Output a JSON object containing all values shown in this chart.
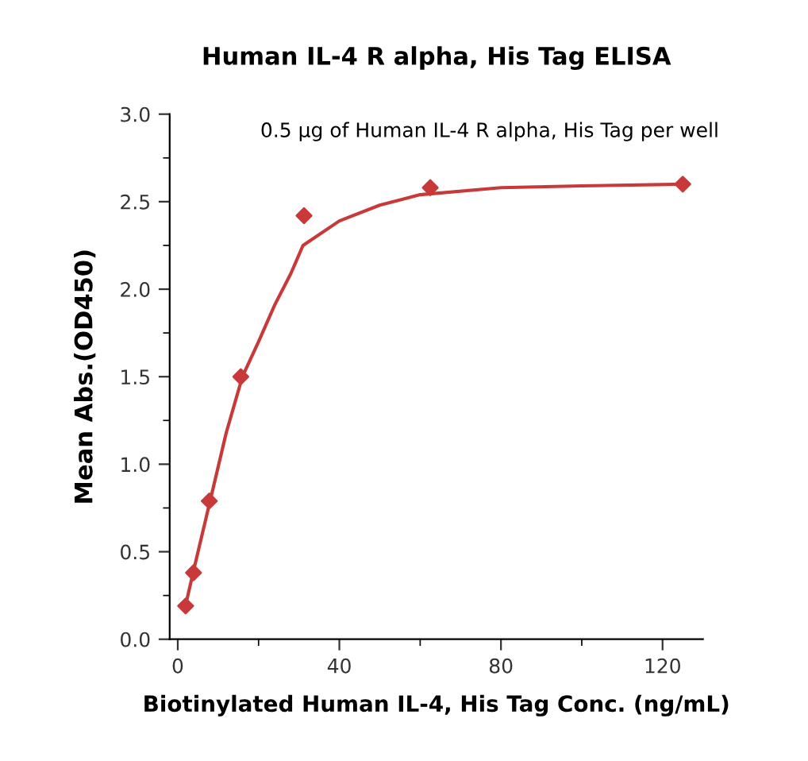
{
  "chart_data": {
    "type": "scatter",
    "title": "Human IL-4 R alpha, His Tag ELISA",
    "xlabel": "Biotinylated Human IL-4, His Tag Conc. (ng/mL)",
    "ylabel": "Mean Abs.(OD450)",
    "annotations": [
      "0.5 µg of Human IL-4 R alpha, His Tag per well"
    ],
    "marker": "diamond",
    "grid": false,
    "legend": false,
    "xlim": [
      -2,
      130
    ],
    "xticks": [
      0,
      {
        "value": 20,
        "label": null
      },
      40,
      {
        "value": 60,
        "label": null
      },
      80,
      {
        "value": 100,
        "label": null
      },
      120
    ],
    "ylim": [
      0,
      3.0
    ],
    "yticks": [
      {
        "value": 0,
        "label": "0.0"
      },
      {
        "value": 0.25,
        "label": null
      },
      0.5,
      {
        "value": 0.75,
        "label": null
      },
      {
        "value": 1,
        "label": "1.0"
      },
      {
        "value": 1.25,
        "label": null
      },
      1.5,
      {
        "value": 1.75,
        "label": null
      },
      {
        "value": 2,
        "label": "2.0"
      },
      {
        "value": 2.25,
        "label": null
      },
      2.5,
      {
        "value": 2.75,
        "label": null
      },
      {
        "value": 3,
        "label": "3.0"
      }
    ],
    "series": [
      {
        "color": "#c83a3a",
        "x": [
          1.95,
          3.9,
          7.8,
          15.6,
          31.25,
          62.5,
          125
        ],
        "values": [
          0.19,
          0.38,
          0.79,
          1.5,
          2.42,
          2.58,
          2.6
        ]
      },
      {
        "type": "line",
        "color": "#c83a3a",
        "marker": "none",
        "x": [
          2,
          4,
          8,
          12,
          16,
          20,
          24,
          28,
          31,
          40,
          50,
          60,
          80,
          100,
          125
        ],
        "values": [
          0.2,
          0.4,
          0.79,
          1.18,
          1.5,
          1.7,
          1.91,
          2.09,
          2.25,
          2.39,
          2.48,
          2.54,
          2.58,
          2.59,
          2.6
        ]
      }
    ]
  }
}
